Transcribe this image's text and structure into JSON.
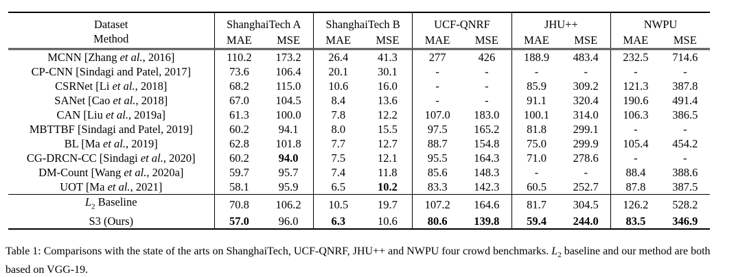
{
  "table": {
    "header": {
      "col1_line1": "Dataset",
      "col1_line2": "Method",
      "datasets": [
        "ShanghaiTech A",
        "ShanghaiTech B",
        "UCF-QNRF",
        "JHU++",
        "NWPU"
      ],
      "metrics": [
        "MAE",
        "MSE"
      ]
    },
    "rows": [
      {
        "method_pre": "MCNN [Zhang ",
        "method_it": "et al.",
        "method_post": ", 2016]",
        "values": [
          "110.2",
          "173.2",
          "26.4",
          "41.3",
          "277",
          "426",
          "188.9",
          "483.4",
          "232.5",
          "714.6"
        ],
        "bold": []
      },
      {
        "method_pre": "CP-CNN [Sindagi and Patel, 2017]",
        "method_it": "",
        "method_post": "",
        "values": [
          "73.6",
          "106.4",
          "20.1",
          "30.1",
          "-",
          "-",
          "-",
          "-",
          "-",
          "-"
        ],
        "bold": []
      },
      {
        "method_pre": "CSRNet [Li ",
        "method_it": "et al.",
        "method_post": ", 2018]",
        "values": [
          "68.2",
          "115.0",
          "10.6",
          "16.0",
          "-",
          "-",
          "85.9",
          "309.2",
          "121.3",
          "387.8"
        ],
        "bold": []
      },
      {
        "method_pre": "SANet [Cao ",
        "method_it": "et al.",
        "method_post": ", 2018]",
        "values": [
          "67.0",
          "104.5",
          "8.4",
          "13.6",
          "-",
          "-",
          "91.1",
          "320.4",
          "190.6",
          "491.4"
        ],
        "bold": []
      },
      {
        "method_pre": "CAN [Liu ",
        "method_it": "et al.",
        "method_post": ", 2019a]",
        "values": [
          "61.3",
          "100.0",
          "7.8",
          "12.2",
          "107.0",
          "183.0",
          "100.1",
          "314.0",
          "106.3",
          "386.5"
        ],
        "bold": []
      },
      {
        "method_pre": "MBTTBF [Sindagi and Patel, 2019]",
        "method_it": "",
        "method_post": "",
        "values": [
          "60.2",
          "94.1",
          "8.0",
          "15.5",
          "97.5",
          "165.2",
          "81.8",
          "299.1",
          "-",
          "-"
        ],
        "bold": []
      },
      {
        "method_pre": "BL [Ma ",
        "method_it": "et al.",
        "method_post": ", 2019]",
        "values": [
          "62.8",
          "101.8",
          "7.7",
          "12.7",
          "88.7",
          "154.8",
          "75.0",
          "299.9",
          "105.4",
          "454.2"
        ],
        "bold": []
      },
      {
        "method_pre": "CG-DRCN-CC [Sindagi ",
        "method_it": "et al.",
        "method_post": ", 2020]",
        "values": [
          "60.2",
          "94.0",
          "7.5",
          "12.1",
          "95.5",
          "164.3",
          "71.0",
          "278.6",
          "-",
          "-"
        ],
        "bold": [
          1
        ]
      },
      {
        "method_pre": "DM-Count [Wang ",
        "method_it": "et al.",
        "method_post": ", 2020a]",
        "values": [
          "59.7",
          "95.7",
          "7.4",
          "11.8",
          "85.6",
          "148.3",
          "-",
          "-",
          "88.4",
          "388.6"
        ],
        "bold": []
      },
      {
        "method_pre": "UOT [Ma ",
        "method_it": "et al.",
        "method_post": ", 2021]",
        "values": [
          "58.1",
          "95.9",
          "6.5",
          "10.2",
          "83.3",
          "142.3",
          "60.5",
          "252.7",
          "87.8",
          "387.5"
        ],
        "bold": [
          3
        ]
      }
    ],
    "baseline_rows": [
      {
        "method_pre": "",
        "method_it": "L",
        "method_sub": "2",
        "method_post": " Baseline",
        "values": [
          "70.8",
          "106.2",
          "10.5",
          "19.7",
          "107.2",
          "164.6",
          "81.7",
          "304.5",
          "126.2",
          "528.2"
        ],
        "bold": []
      },
      {
        "method_pre": "S3 (Ours)",
        "method_it": "",
        "method_sub": "",
        "method_post": "",
        "values": [
          "57.0",
          "96.0",
          "6.3",
          "10.6",
          "80.6",
          "139.8",
          "59.4",
          "244.0",
          "83.5",
          "346.9"
        ],
        "bold": [
          0,
          2,
          4,
          5,
          6,
          7,
          8,
          9
        ]
      }
    ]
  },
  "caption": {
    "part1": "Table 1: Comparisons with the state of the arts on ShanghaiTech, UCF-QNRF, JHU++ and NWPU four crowd benchmarks. ",
    "math": "L",
    "math_sub": "2",
    "part2": " baseline and our method are both based on VGG-19."
  }
}
